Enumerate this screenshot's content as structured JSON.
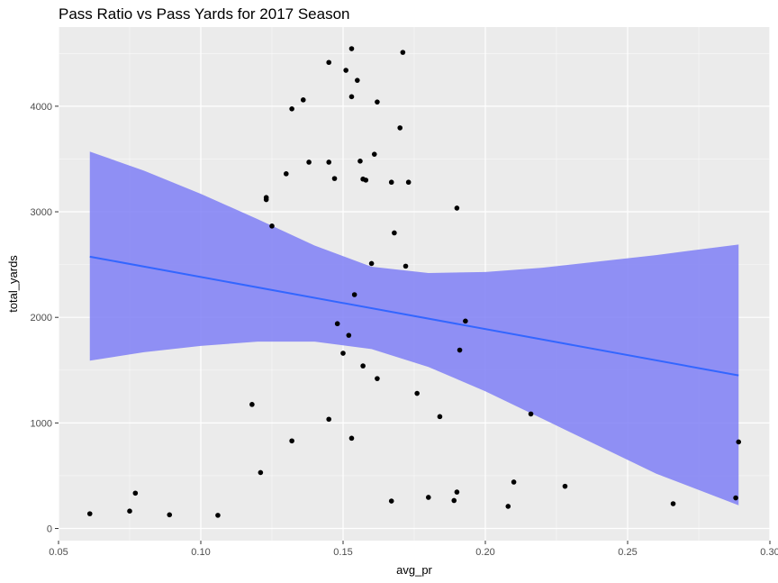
{
  "chart_data": {
    "type": "scatter",
    "title": "Pass Ratio vs Pass Yards for 2017 Season",
    "xlabel": "avg_pr",
    "ylabel": "total_yards",
    "xlim": [
      0.05,
      0.3
    ],
    "ylim": [
      0,
      4650
    ],
    "x_ticks": [
      0.05,
      0.1,
      0.15,
      0.2,
      0.25,
      0.3
    ],
    "x_tick_labels": [
      "0.05",
      "0.10",
      "0.15",
      "0.20",
      "0.25",
      "0.30"
    ],
    "y_ticks": [
      0,
      1000,
      2000,
      3000,
      4000
    ],
    "y_tick_labels": [
      "0",
      "1000",
      "2000",
      "3000",
      "4000"
    ],
    "grid": true,
    "legend": "none",
    "colors": {
      "panel_background": "#ebebeb",
      "grid_major": "#ffffff",
      "points": "#000000",
      "trend_line": "#3366ff",
      "confidence_band": "#7a7af5"
    },
    "series": [
      {
        "type": "points",
        "x": [
          0.061,
          0.075,
          0.077,
          0.089,
          0.106,
          0.118,
          0.121,
          0.123,
          0.123,
          0.125,
          0.13,
          0.132,
          0.132,
          0.136,
          0.138,
          0.145,
          0.145,
          0.145,
          0.147,
          0.148,
          0.15,
          0.151,
          0.152,
          0.153,
          0.153,
          0.153,
          0.154,
          0.155,
          0.156,
          0.157,
          0.157,
          0.158,
          0.16,
          0.161,
          0.162,
          0.162,
          0.167,
          0.167,
          0.168,
          0.17,
          0.171,
          0.172,
          0.173,
          0.176,
          0.18,
          0.184,
          0.189,
          0.19,
          0.19,
          0.191,
          0.193,
          0.208,
          0.21,
          0.216,
          0.228,
          0.266,
          0.288,
          0.289
        ],
        "y": [
          140,
          165,
          335,
          130,
          125,
          1175,
          530,
          3135,
          3115,
          2865,
          3360,
          3975,
          830,
          4060,
          3470,
          4415,
          3470,
          1035,
          3315,
          1940,
          1660,
          4340,
          1830,
          4090,
          855,
          4545,
          2215,
          4245,
          3480,
          3310,
          1540,
          3300,
          2510,
          3545,
          1420,
          4040,
          3280,
          260,
          2800,
          3795,
          4510,
          2485,
          3280,
          1280,
          295,
          1060,
          265,
          3035,
          345,
          1690,
          1965,
          210,
          440,
          1085,
          400,
          235,
          290,
          820
        ]
      },
      {
        "type": "trend_line",
        "x": [
          0.061,
          0.289
        ],
        "y": [
          2575,
          1450
        ]
      },
      {
        "type": "confidence_band",
        "x": [
          0.061,
          0.08,
          0.1,
          0.12,
          0.14,
          0.16,
          0.18,
          0.2,
          0.22,
          0.24,
          0.26,
          0.289
        ],
        "upper": [
          3570,
          3390,
          3170,
          2930,
          2680,
          2480,
          2420,
          2430,
          2470,
          2530,
          2590,
          2690
        ],
        "lower": [
          1590,
          1670,
          1730,
          1770,
          1770,
          1700,
          1530,
          1300,
          1040,
          780,
          520,
          220
        ]
      }
    ]
  }
}
